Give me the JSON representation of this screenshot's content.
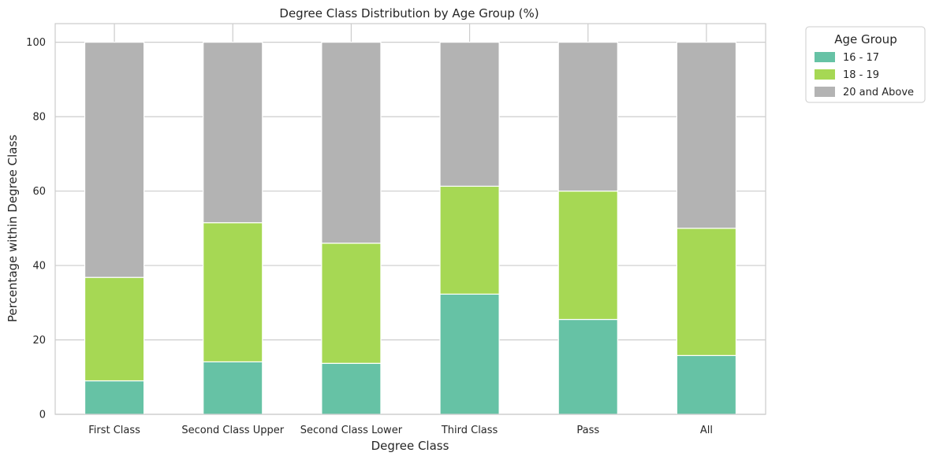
{
  "chart_data": {
    "type": "bar",
    "stacked": true,
    "title": "Degree Class Distribution by Age Group (%)",
    "xlabel": "Degree Class",
    "ylabel": "Percentage within Degree Class",
    "ylim": [
      0,
      105
    ],
    "yticks": [
      "0",
      "20",
      "40",
      "60",
      "80",
      "100"
    ],
    "grid": true,
    "categories": [
      "First Class",
      "Second Class Upper",
      "Second Class Lower",
      "Third Class",
      "Pass",
      "All"
    ],
    "series": [
      {
        "name": "16 - 17",
        "color": "#66c2a5",
        "values": [
          9.0,
          14.1,
          13.7,
          32.3,
          25.5,
          15.8
        ]
      },
      {
        "name": "18 - 19",
        "color": "#a6d854",
        "values": [
          27.8,
          37.4,
          32.3,
          29.0,
          34.5,
          34.2
        ]
      },
      {
        "name": "20 and Above",
        "color": "#b3b3b3",
        "values": [
          63.2,
          48.5,
          54.0,
          38.7,
          40.0,
          50.0
        ]
      }
    ],
    "legend": {
      "title": "Age Group",
      "placement": "outside-top-right"
    }
  }
}
